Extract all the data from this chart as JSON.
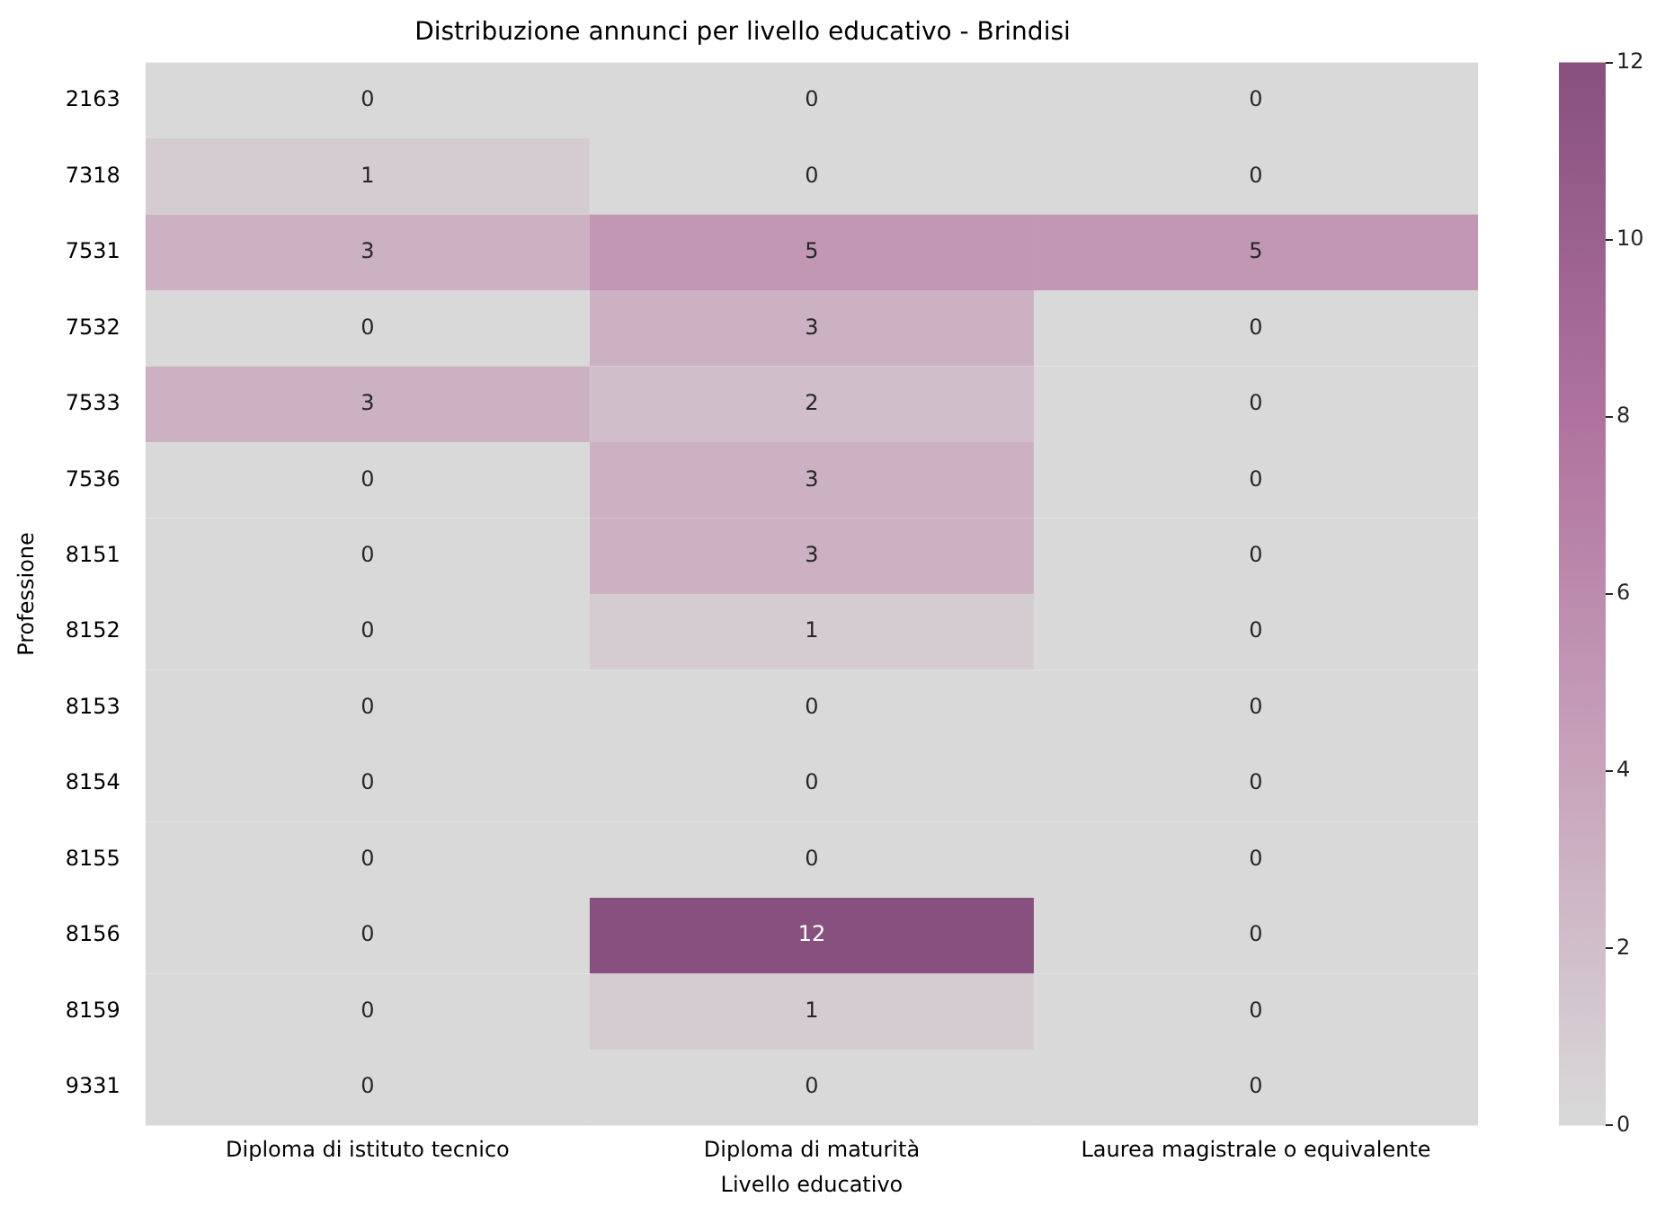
{
  "chart_data": {
    "type": "heatmap",
    "title": "Distribuzione annunci per livello educativo - Brindisi",
    "xlabel": "Livello educativo",
    "ylabel": "Professione",
    "categories": [
      "Diploma di istituto tecnico",
      "Diploma di maturità",
      "Laurea magistrale o equivalente"
    ],
    "y_categories": [
      "2163",
      "7318",
      "7531",
      "7532",
      "7533",
      "7536",
      "8151",
      "8152",
      "8153",
      "8154",
      "8155",
      "8156",
      "8159",
      "9331"
    ],
    "cells": [
      [
        0,
        0,
        0
      ],
      [
        1,
        0,
        0
      ],
      [
        3,
        5,
        5
      ],
      [
        0,
        3,
        0
      ],
      [
        3,
        2,
        0
      ],
      [
        0,
        3,
        0
      ],
      [
        0,
        3,
        0
      ],
      [
        0,
        1,
        0
      ],
      [
        0,
        0,
        0
      ],
      [
        0,
        0,
        0
      ],
      [
        0,
        0,
        0
      ],
      [
        0,
        12,
        0
      ],
      [
        0,
        1,
        0
      ],
      [
        0,
        0,
        0
      ]
    ],
    "data_labels": true,
    "clim": [
      0,
      12
    ],
    "cticks": [
      0,
      2,
      4,
      6,
      8,
      10,
      12
    ]
  }
}
